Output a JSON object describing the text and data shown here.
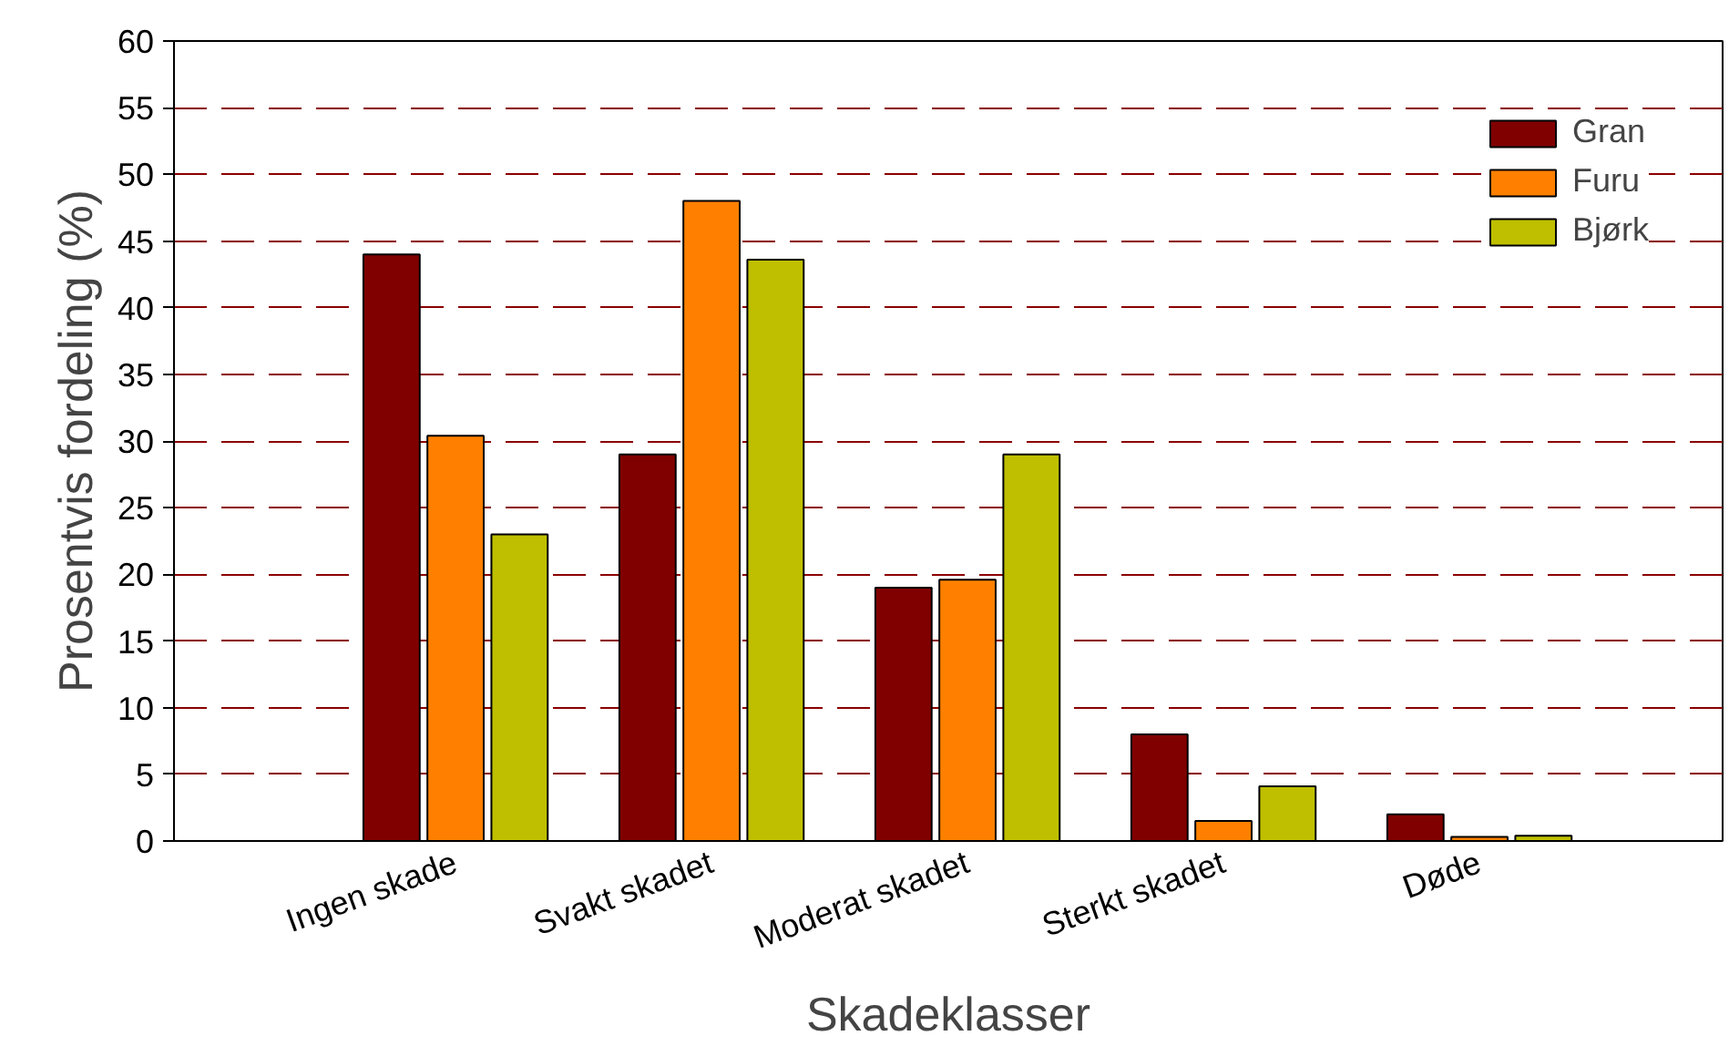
{
  "chart_data": {
    "type": "bar",
    "xlabel": "Skadeklasser",
    "ylabel": "Prosentvis fordeling (%)",
    "categories": [
      "Ingen skade",
      "Svakt skadet",
      "Moderat skadet",
      "Sterkt skadet",
      "Døde"
    ],
    "series": [
      {
        "name": "Gran",
        "color": "#800000",
        "values": [
          44,
          29,
          19,
          8,
          2
        ]
      },
      {
        "name": "Furu",
        "color": "#ff8000",
        "values": [
          30.4,
          48,
          19.6,
          1.5,
          0.3
        ]
      },
      {
        "name": "Bjørk",
        "color": "#bfbf00",
        "values": [
          23,
          43.6,
          29,
          4.1,
          0.4
        ]
      }
    ],
    "ylim": [
      0,
      60
    ],
    "yticks": [
      0,
      5,
      10,
      15,
      20,
      25,
      30,
      35,
      40,
      45,
      50,
      55,
      60
    ],
    "grid": "y",
    "legend": "top right"
  }
}
